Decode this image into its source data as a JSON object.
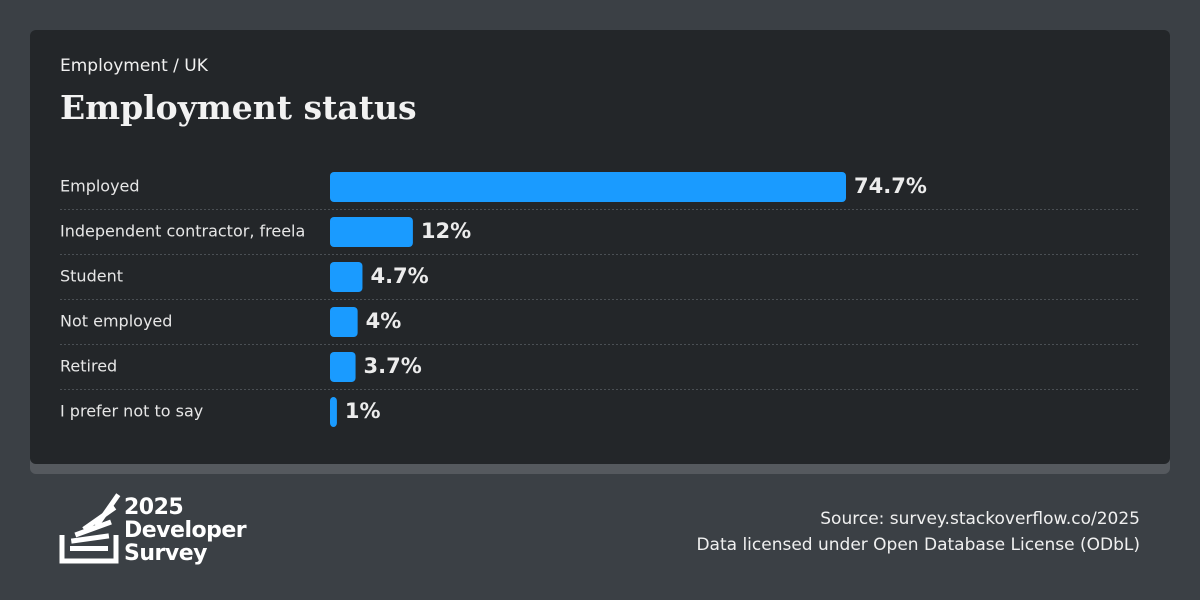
{
  "chart_data": {
    "type": "hbar",
    "subtitle": "Employment / UK",
    "title": "Employment status",
    "categories": [
      "Employed",
      "Independent contractor, freela",
      "Student",
      "Not employed",
      "Retired",
      "I prefer not to say"
    ],
    "values": [
      74.7,
      12,
      4.7,
      4,
      3.7,
      1
    ],
    "value_labels": [
      "74.7%",
      "12%",
      "4.7%",
      "4%",
      "3.7%",
      "1%"
    ],
    "color": "#1a9bff"
  },
  "footer": {
    "logo": [
      "2025",
      "Developer",
      "Survey"
    ],
    "source": "Source: survey.stackoverflow.co/2025",
    "license": "Data licensed under Open Database License (ODbL)"
  }
}
